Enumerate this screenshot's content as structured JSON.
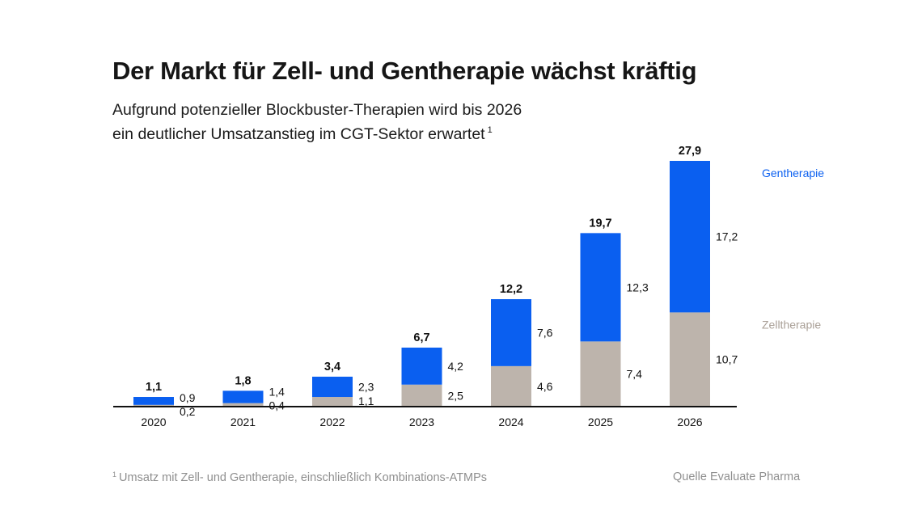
{
  "header": {
    "title": "Der Markt für Zell- und Gentherapie wächst kräftig",
    "subtitle_line1": "Aufgrund potenzieller Blockbuster-Therapien wird bis 2026",
    "subtitle_line2": "ein deutlicher Umsatzanstieg im CGT-Sektor erwartet",
    "subtitle_footnote_mark": "1"
  },
  "footer": {
    "footnote_mark": "1",
    "footnote_text": "Umsatz mit Zell- und Gentherapie, einschließlich Kombinations-ATMPs",
    "source": "Quelle Evaluate Pharma"
  },
  "chart_data": {
    "type": "bar",
    "stacked": true,
    "title": "Der Markt für Zell- und Gentherapie wächst kräftig",
    "xlabel": "",
    "ylabel": "",
    "categories": [
      "2020",
      "2021",
      "2022",
      "2023",
      "2024",
      "2025",
      "2026"
    ],
    "series": [
      {
        "name": "Zelltherapie",
        "color": "#bdb4ac",
        "values": [
          0.2,
          0.4,
          1.1,
          2.5,
          4.6,
          7.4,
          10.7
        ],
        "labels": [
          "0,2",
          "0,4",
          "1,1",
          "2,5",
          "4,6",
          "7,4",
          "10,7"
        ]
      },
      {
        "name": "Gentherapie",
        "color": "#0a5ff0",
        "values": [
          0.9,
          1.4,
          2.3,
          4.2,
          7.6,
          12.3,
          17.2
        ],
        "labels": [
          "0,9",
          "1,4",
          "2,3",
          "4,2",
          "7,6",
          "12,3",
          "17,2"
        ]
      }
    ],
    "totals": [
      1.1,
      1.8,
      3.4,
      6.7,
      12.2,
      19.7,
      27.9
    ],
    "total_labels": [
      "1,1",
      "1,8",
      "3,4",
      "6,7",
      "12,2",
      "19,7",
      "27,9"
    ],
    "ylim": [
      0,
      27.9
    ],
    "grid": false,
    "legend_placement": "right"
  }
}
